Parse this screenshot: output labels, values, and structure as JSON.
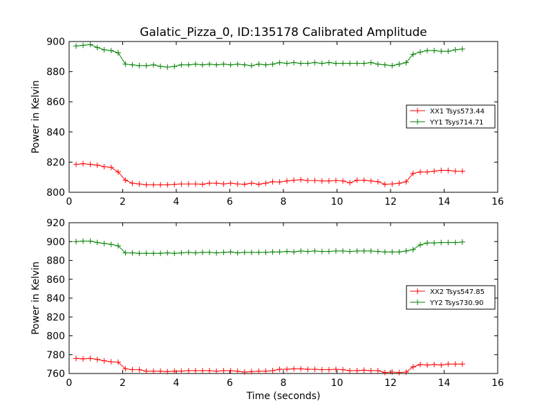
{
  "title": "Galatic_Pizza_0, ID:135178 Calibrated Amplitude",
  "chart_data": [
    {
      "type": "line",
      "ylabel": "Power in Kelvin",
      "xlabel": "",
      "xlim": [
        0,
        16
      ],
      "ylim": [
        800,
        900
      ],
      "xticks": [
        0,
        2,
        4,
        6,
        8,
        10,
        12,
        14,
        16
      ],
      "yticks": [
        800,
        820,
        840,
        860,
        880,
        900
      ],
      "legend_position": "center-right",
      "series": [
        {
          "name": "XX1 Tsys573.44",
          "color": "#ff0000",
          "marker": "plus",
          "x": [
            0.26,
            0.52,
            0.79,
            1.05,
            1.31,
            1.57,
            1.83,
            2.1,
            2.36,
            2.62,
            2.88,
            3.15,
            3.41,
            3.67,
            3.93,
            4.19,
            4.46,
            4.72,
            4.98,
            5.24,
            5.5,
            5.77,
            6.03,
            6.29,
            6.55,
            6.81,
            7.08,
            7.34,
            7.6,
            7.86,
            8.13,
            8.39,
            8.65,
            8.91,
            9.17,
            9.44,
            9.7,
            9.96,
            10.22,
            10.48,
            10.75,
            11.01,
            11.27,
            11.53,
            11.79,
            12.06,
            12.32,
            12.58,
            12.84,
            13.11,
            13.37,
            13.63,
            13.89,
            14.15,
            14.42,
            14.68
          ],
          "y": [
            818.5,
            819,
            818.5,
            818,
            817,
            816.5,
            813.5,
            808,
            806,
            805.5,
            805,
            805,
            805,
            805,
            805.3,
            805.5,
            805.5,
            805.5,
            805.3,
            806,
            806,
            805.5,
            806,
            805.5,
            805.3,
            806,
            805.3,
            806,
            807,
            806.8,
            807.5,
            808,
            808.3,
            807.8,
            807.8,
            807.5,
            807.5,
            807.8,
            807.5,
            806.3,
            808,
            808,
            807.5,
            807,
            805.3,
            805.5,
            806,
            807,
            812.5,
            813.5,
            813.5,
            814,
            814.5,
            814.5,
            814,
            814
          ]
        },
        {
          "name": "YY1 Tsys714.71",
          "color": "#008000",
          "marker": "plus",
          "x": [
            0.26,
            0.52,
            0.79,
            1.05,
            1.31,
            1.57,
            1.83,
            2.1,
            2.36,
            2.62,
            2.88,
            3.15,
            3.41,
            3.67,
            3.93,
            4.19,
            4.46,
            4.72,
            4.98,
            5.24,
            5.5,
            5.77,
            6.03,
            6.29,
            6.55,
            6.81,
            7.08,
            7.34,
            7.6,
            7.86,
            8.13,
            8.39,
            8.65,
            8.91,
            9.17,
            9.44,
            9.7,
            9.96,
            10.22,
            10.48,
            10.75,
            11.01,
            11.27,
            11.53,
            11.79,
            12.06,
            12.32,
            12.58,
            12.84,
            13.11,
            13.37,
            13.63,
            13.89,
            14.15,
            14.42,
            14.68
          ],
          "y": [
            897,
            897.5,
            898,
            896,
            894.5,
            894,
            892.5,
            885,
            884.5,
            884,
            884,
            884.5,
            883.5,
            883,
            883.5,
            884.5,
            884.5,
            885,
            884.5,
            885,
            884.5,
            885,
            884.5,
            885,
            884.5,
            884,
            885,
            884.5,
            885,
            886,
            885.5,
            886,
            885.5,
            885.5,
            886,
            885.5,
            886,
            885.5,
            885.5,
            885.5,
            885.5,
            885.5,
            886,
            885,
            884.5,
            884,
            885,
            886,
            891.5,
            893,
            894,
            894,
            893.5,
            893.5,
            894.5,
            895
          ]
        }
      ]
    },
    {
      "type": "line",
      "ylabel": "Power in Kelvin",
      "xlabel": "Time (seconds)",
      "xlim": [
        0,
        16
      ],
      "ylim": [
        760,
        920
      ],
      "xticks": [
        0,
        2,
        4,
        6,
        8,
        10,
        12,
        14,
        16
      ],
      "yticks": [
        760,
        780,
        800,
        820,
        840,
        860,
        880,
        900,
        920
      ],
      "legend_position": "center-right",
      "series": [
        {
          "name": "XX2 Tsys547.85",
          "color": "#ff0000",
          "marker": "plus",
          "x": [
            0.26,
            0.52,
            0.79,
            1.05,
            1.31,
            1.57,
            1.83,
            2.1,
            2.36,
            2.62,
            2.88,
            3.15,
            3.41,
            3.67,
            3.93,
            4.19,
            4.46,
            4.72,
            4.98,
            5.24,
            5.5,
            5.77,
            6.03,
            6.29,
            6.55,
            6.81,
            7.08,
            7.34,
            7.6,
            7.86,
            8.13,
            8.39,
            8.65,
            8.91,
            9.17,
            9.44,
            9.7,
            9.96,
            10.22,
            10.48,
            10.75,
            11.01,
            11.27,
            11.53,
            11.79,
            12.06,
            12.32,
            12.58,
            12.84,
            13.11,
            13.37,
            13.63,
            13.89,
            14.15,
            14.42,
            14.68
          ],
          "y": [
            776,
            775.5,
            776,
            775,
            773.5,
            772.5,
            772,
            765,
            764,
            764,
            762.5,
            762.5,
            762.5,
            762,
            762.5,
            762.5,
            763,
            763,
            763,
            763,
            762.5,
            763,
            763,
            762.5,
            761.5,
            762,
            762.5,
            762.5,
            763,
            764.5,
            764.5,
            765,
            765,
            764.5,
            764.5,
            764,
            764,
            764.5,
            764,
            763,
            763,
            763.5,
            763,
            763,
            761,
            761.5,
            761,
            761.5,
            767,
            769.5,
            769,
            769.5,
            769,
            770,
            770,
            770
          ]
        },
        {
          "name": "YY2 Tsys730.90",
          "color": "#008000",
          "marker": "plus",
          "x": [
            0.26,
            0.52,
            0.79,
            1.05,
            1.31,
            1.57,
            1.83,
            2.1,
            2.36,
            2.62,
            2.88,
            3.15,
            3.41,
            3.67,
            3.93,
            4.19,
            4.46,
            4.72,
            4.98,
            5.24,
            5.5,
            5.77,
            6.03,
            6.29,
            6.55,
            6.81,
            7.08,
            7.34,
            7.6,
            7.86,
            8.13,
            8.39,
            8.65,
            8.91,
            9.17,
            9.44,
            9.7,
            9.96,
            10.22,
            10.48,
            10.75,
            11.01,
            11.27,
            11.53,
            11.79,
            12.06,
            12.32,
            12.58,
            12.84,
            13.11,
            13.37,
            13.63,
            13.89,
            14.15,
            14.42,
            14.68
          ],
          "y": [
            900,
            900.5,
            900.5,
            899,
            898,
            897,
            895.5,
            888,
            888,
            887.5,
            887.5,
            887.5,
            887.5,
            888,
            887.5,
            888,
            888.5,
            888,
            888.5,
            888.5,
            888,
            888.5,
            889,
            888,
            888.5,
            888.5,
            888.5,
            888.5,
            889,
            889,
            889.5,
            889,
            890,
            889.5,
            890,
            889.5,
            889.5,
            890,
            890,
            889.5,
            890,
            890,
            890,
            889.5,
            889,
            889,
            889,
            890,
            891.5,
            896.5,
            898.5,
            898.5,
            899,
            899,
            899,
            899.5
          ]
        }
      ]
    }
  ]
}
